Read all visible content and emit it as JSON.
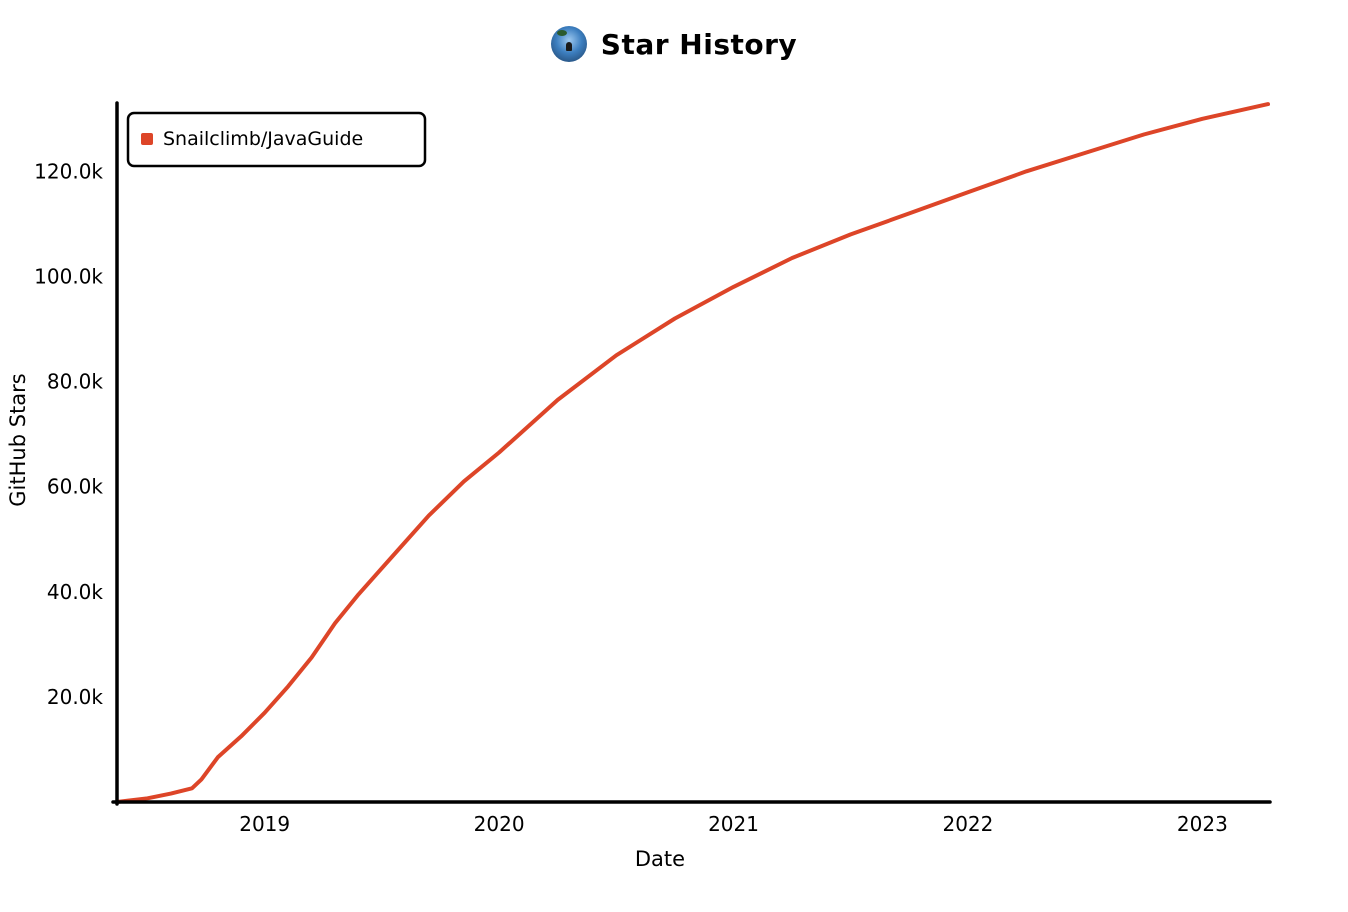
{
  "header": {
    "title": "Star History",
    "avatar_icon": "avatar-icon"
  },
  "chart_data": {
    "type": "line",
    "title": "Star History",
    "xlabel": "Date",
    "ylabel": "GitHub Stars",
    "x_ticks": [
      "2019",
      "2020",
      "2021",
      "2022",
      "2023"
    ],
    "y_ticks": [
      "20.0k",
      "40.0k",
      "60.0k",
      "80.0k",
      "100.0k",
      "120.0k"
    ],
    "y_tick_values": [
      20000,
      40000,
      60000,
      80000,
      100000,
      120000
    ],
    "x_tick_values": [
      2019.0,
      2020.0,
      2021.0,
      2022.0,
      2023.0
    ],
    "xlim": [
      2018.37,
      2023.28
    ],
    "ylim": [
      0,
      133000
    ],
    "grid": false,
    "legend_position": "top-left",
    "series": [
      {
        "name": "Snailclimb/JavaGuide",
        "color": "#dd4528",
        "x": [
          2018.37,
          2018.5,
          2018.6,
          2018.69,
          2018.73,
          2018.8,
          2018.9,
          2019.0,
          2019.1,
          2019.2,
          2019.3,
          2019.4,
          2019.55,
          2019.7,
          2019.85,
          2020.0,
          2020.25,
          2020.5,
          2020.75,
          2021.0,
          2021.25,
          2021.5,
          2021.75,
          2022.0,
          2022.25,
          2022.5,
          2022.75,
          2023.0,
          2023.28
        ],
        "y": [
          0,
          700,
          1600,
          2600,
          4300,
          8500,
          12500,
          17000,
          22000,
          27500,
          34000,
          39500,
          47000,
          54500,
          61000,
          66500,
          76500,
          85000,
          92000,
          98000,
          103500,
          108000,
          112000,
          116000,
          120000,
          123500,
          127000,
          130000,
          132800
        ]
      }
    ]
  }
}
